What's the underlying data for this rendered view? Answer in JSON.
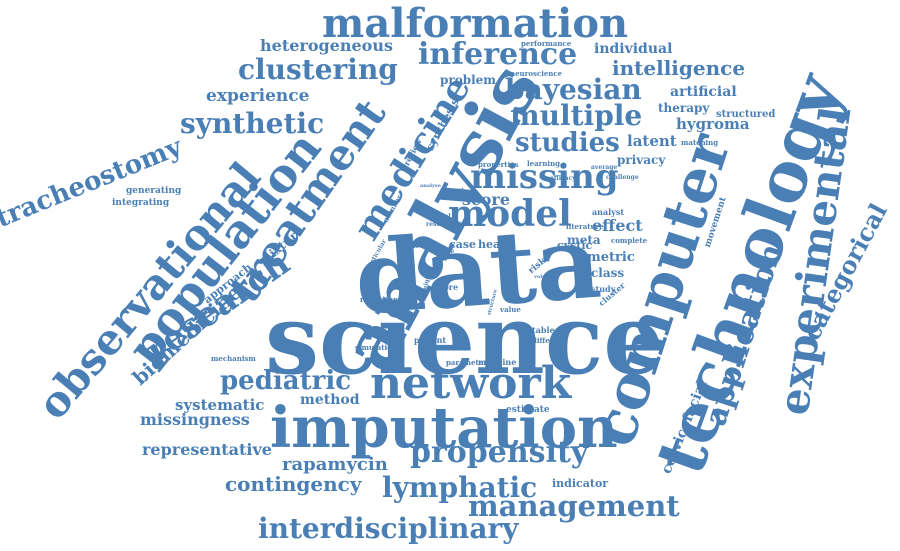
{
  "cloud": {
    "color": "#4a7fb5",
    "words": [
      {
        "text": "science",
        "weight": 95
      },
      {
        "text": "data",
        "weight": 90
      },
      {
        "text": "analysis",
        "weight": 82
      },
      {
        "text": "technology",
        "weight": 80
      },
      {
        "text": "computer",
        "weight": 75
      },
      {
        "text": "imputation",
        "weight": 68
      },
      {
        "text": "network",
        "weight": 52
      },
      {
        "text": "population",
        "weight": 50
      },
      {
        "text": "malformation",
        "weight": 48
      },
      {
        "text": "treatment",
        "weight": 48
      },
      {
        "text": "experimental",
        "weight": 47
      },
      {
        "text": "observational",
        "weight": 45
      },
      {
        "text": "model",
        "weight": 42
      },
      {
        "text": "missing",
        "weight": 40
      },
      {
        "text": "medicine",
        "weight": 40
      },
      {
        "text": "research",
        "weight": 38
      },
      {
        "text": "inference",
        "weight": 36
      },
      {
        "text": "propensity",
        "weight": 36
      },
      {
        "text": "management",
        "weight": 35
      },
      {
        "text": "application",
        "weight": 34
      },
      {
        "text": "bayesian",
        "weight": 33
      },
      {
        "text": "multiple",
        "weight": 33
      },
      {
        "text": "lymphatic",
        "weight": 32
      },
      {
        "text": "clustering",
        "weight": 31
      },
      {
        "text": "interdisciplinary",
        "weight": 31
      },
      {
        "text": "tracheostomy",
        "weight": 30
      },
      {
        "text": "synthetic",
        "weight": 30
      },
      {
        "text": "pediatric",
        "weight": 29
      },
      {
        "text": "studies",
        "weight": 29
      },
      {
        "text": "categorical",
        "weight": 28
      },
      {
        "text": "contingency",
        "weight": 24
      },
      {
        "text": "biomedicine",
        "weight": 22
      },
      {
        "text": "intelligence",
        "weight": 21
      },
      {
        "text": "rapamycin",
        "weight": 20
      },
      {
        "text": "experience",
        "weight": 19
      },
      {
        "text": "heterogeneous",
        "weight": 19
      },
      {
        "text": "score",
        "weight": 19
      },
      {
        "text": "representative",
        "weight": 18
      },
      {
        "text": "effect",
        "weight": 18
      },
      {
        "text": "missingness",
        "weight": 18
      },
      {
        "text": "cervicofacial",
        "weight": 17
      },
      {
        "text": "systematic",
        "weight": 17
      },
      {
        "text": "latent",
        "weight": 17
      },
      {
        "text": "method",
        "weight": 16
      },
      {
        "text": "hygroma",
        "weight": 16
      },
      {
        "text": "individual",
        "weight": 15
      },
      {
        "text": "artificial",
        "weight": 15
      },
      {
        "text": "metric",
        "weight": 15
      },
      {
        "text": "meta",
        "weight": 14
      },
      {
        "text": "class",
        "weight": 14
      },
      {
        "text": "problem",
        "weight": 14
      },
      {
        "text": "privacy",
        "weight": 14
      },
      {
        "text": "mixture",
        "weight": 13
      },
      {
        "text": "therapy",
        "weight": 13
      },
      {
        "text": "cystic",
        "weight": 13
      },
      {
        "text": "approach",
        "weight": 12
      },
      {
        "text": "indicator",
        "weight": 12
      },
      {
        "text": "synthesis",
        "weight": 12
      },
      {
        "text": "structured",
        "weight": 11
      },
      {
        "text": "case",
        "weight": 11
      },
      {
        "text": "head",
        "weight": 11
      },
      {
        "text": "generating",
        "weight": 10
      },
      {
        "text": "integrating",
        "weight": 10
      },
      {
        "text": "movement",
        "weight": 10
      },
      {
        "text": "estimate",
        "weight": 10
      },
      {
        "text": "analyst",
        "weight": 9
      },
      {
        "text": "review",
        "weight": 9
      },
      {
        "text": "study",
        "weight": 9
      },
      {
        "text": "cluster",
        "weight": 9
      },
      {
        "text": "table",
        "weight": 9
      },
      {
        "text": "patient",
        "weight": 9
      },
      {
        "text": "machine",
        "weight": 9
      },
      {
        "text": "matching",
        "weight": 8
      },
      {
        "text": "performance",
        "weight": 8
      },
      {
        "text": "neuroscience",
        "weight": 8
      },
      {
        "text": "learning",
        "weight": 8
      },
      {
        "text": "properties",
        "weight": 8
      },
      {
        "text": "literature",
        "weight": 8
      },
      {
        "text": "complete",
        "weight": 8
      },
      {
        "text": "mechanism",
        "weight": 8
      },
      {
        "text": "parameter",
        "weight": 8
      },
      {
        "text": "simulation",
        "weight": 8
      },
      {
        "text": "different",
        "weight": 8
      },
      {
        "text": "value",
        "weight": 8
      },
      {
        "text": "reduction",
        "weight": 8
      },
      {
        "text": "more",
        "weight": 8
      },
      {
        "text": "challenge",
        "weight": 7
      },
      {
        "text": "efficacy",
        "weight": 7
      },
      {
        "text": "average",
        "weight": 7
      },
      {
        "text": "number",
        "weight": 7
      },
      {
        "text": "particular",
        "weight": 7
      },
      {
        "text": "based",
        "weight": 7
      },
      {
        "text": "made",
        "weight": 7
      },
      {
        "text": "result",
        "weight": 7
      },
      {
        "text": "clinical",
        "weight": 7
      },
      {
        "text": "interest",
        "weight": 7
      },
      {
        "text": "analyse",
        "weight": 7
      },
      {
        "text": "technique",
        "weight": 7
      },
      {
        "text": "structure",
        "weight": 7
      },
      {
        "text": "volume",
        "weight": 7
      },
      {
        "text": "risk",
        "weight": 7
      }
    ]
  }
}
